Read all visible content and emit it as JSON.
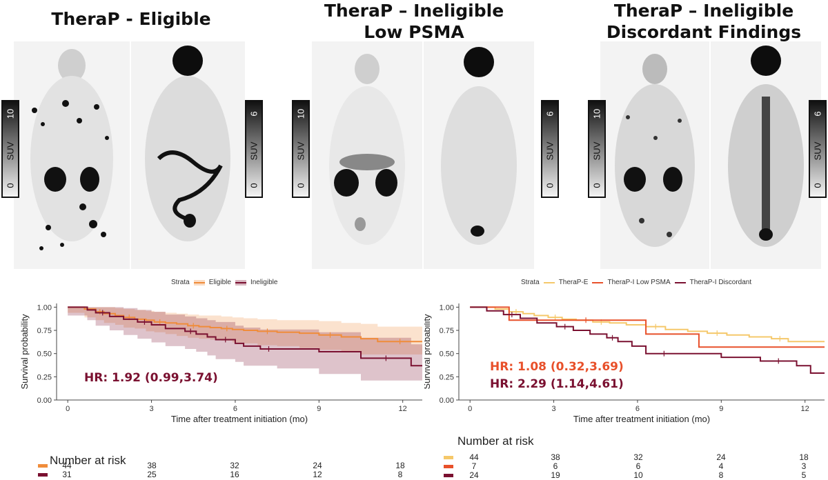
{
  "panels": [
    {
      "title_line1": "TheraP - Eligible",
      "title_line2": ""
    },
    {
      "title_line1": "TheraP – Ineligible",
      "title_line2": "Low PSMA"
    },
    {
      "title_line1": "TheraP – Ineligible",
      "title_line2": "Discordant Findings"
    }
  ],
  "scales": [
    {
      "label": "SUV",
      "low": "0",
      "high": "10"
    },
    {
      "label": "SUV",
      "low": "0",
      "high": "6"
    },
    {
      "label": "SUV",
      "low": "0",
      "high": "10"
    },
    {
      "label": "SUV",
      "low": "0",
      "high": "6"
    },
    {
      "label": "SUV",
      "low": "0",
      "high": "10"
    },
    {
      "label": "SUV",
      "low": "0",
      "high": "6"
    }
  ],
  "colors": {
    "eligible": "#f08c3a",
    "ineligible": "#7a1030",
    "therap_e": "#f5c86a",
    "low_psma": "#e8502a",
    "discordant": "#7a1030"
  },
  "chart_data": [
    {
      "type": "line",
      "legend_title": "Strata",
      "legend_position": "top",
      "xlabel": "Time after treatment initiation (mo)",
      "ylabel": "Survival probability",
      "xlim": [
        -0.4,
        12.7
      ],
      "ylim": [
        0,
        1.04
      ],
      "xticks": [
        "0",
        "3",
        "6",
        "9",
        "12"
      ],
      "yticks": [
        "0.00",
        "0.25",
        "0.50",
        "0.75",
        "1.00"
      ],
      "series": [
        {
          "name": "Eligible",
          "color": "#f08c3a",
          "x": [
            0,
            0.6,
            1.0,
            1.3,
            1.7,
            2.0,
            2.4,
            2.8,
            3.1,
            3.5,
            3.9,
            4.3,
            4.7,
            5.1,
            5.5,
            5.9,
            6.3,
            6.8,
            7.5,
            8.3,
            9.0,
            9.8,
            10.5,
            11.1,
            12.7
          ],
          "y": [
            1.0,
            0.98,
            0.95,
            0.93,
            0.91,
            0.89,
            0.87,
            0.86,
            0.84,
            0.83,
            0.82,
            0.8,
            0.79,
            0.78,
            0.77,
            0.76,
            0.75,
            0.74,
            0.73,
            0.72,
            0.7,
            0.68,
            0.66,
            0.63,
            0.63
          ],
          "ci_upper": [
            1.0,
            1.0,
            1.0,
            1.0,
            0.99,
            0.98,
            0.97,
            0.96,
            0.95,
            0.94,
            0.93,
            0.92,
            0.91,
            0.91,
            0.9,
            0.89,
            0.88,
            0.87,
            0.86,
            0.86,
            0.85,
            0.83,
            0.82,
            0.79,
            0.79
          ],
          "ci_lower": [
            1.0,
            0.94,
            0.89,
            0.86,
            0.83,
            0.81,
            0.78,
            0.77,
            0.74,
            0.73,
            0.71,
            0.69,
            0.67,
            0.66,
            0.65,
            0.64,
            0.62,
            0.61,
            0.59,
            0.58,
            0.56,
            0.54,
            0.52,
            0.49,
            0.49
          ]
        },
        {
          "name": "Ineligible",
          "color": "#7a1030",
          "x": [
            0,
            0.7,
            1.0,
            1.5,
            2.0,
            2.5,
            3.0,
            3.5,
            4.2,
            4.6,
            5.0,
            5.3,
            6.0,
            6.3,
            6.9,
            7.5,
            9.0,
            10.5,
            12.3,
            12.7
          ],
          "y": [
            1.0,
            0.97,
            0.94,
            0.9,
            0.87,
            0.84,
            0.81,
            0.77,
            0.74,
            0.71,
            0.68,
            0.65,
            0.61,
            0.58,
            0.55,
            0.55,
            0.52,
            0.45,
            0.37,
            0.37
          ],
          "ci_upper": [
            1.0,
            1.0,
            1.0,
            1.0,
            0.99,
            0.97,
            0.95,
            0.92,
            0.9,
            0.88,
            0.86,
            0.84,
            0.8,
            0.78,
            0.76,
            0.76,
            0.73,
            0.67,
            0.6,
            0.6
          ],
          "ci_lower": [
            1.0,
            0.91,
            0.86,
            0.8,
            0.75,
            0.7,
            0.66,
            0.62,
            0.58,
            0.55,
            0.52,
            0.48,
            0.44,
            0.41,
            0.37,
            0.37,
            0.34,
            0.28,
            0.21,
            0.21
          ]
        }
      ],
      "annotation": "HR: 1.92 (0.99,3.74)"
    },
    {
      "type": "line",
      "legend_title": "Strata",
      "legend_position": "top",
      "xlabel": "Time after treatment initiation (mo)",
      "ylabel": "Survival probability",
      "xlim": [
        -0.4,
        12.7
      ],
      "ylim": [
        0,
        1.04
      ],
      "xticks": [
        "0",
        "3",
        "6",
        "9",
        "12"
      ],
      "yticks": [
        "0.00",
        "0.25",
        "0.50",
        "0.75",
        "1.00"
      ],
      "series": [
        {
          "name": "TheraP-E",
          "color": "#f5c86a",
          "x": [
            0,
            0.9,
            1.4,
            1.9,
            2.3,
            2.8,
            3.3,
            3.8,
            4.4,
            5.0,
            5.6,
            6.3,
            7.0,
            7.8,
            8.5,
            9.2,
            10.0,
            10.8,
            11.4,
            12.7
          ],
          "y": [
            1.0,
            0.98,
            0.95,
            0.93,
            0.91,
            0.89,
            0.87,
            0.86,
            0.84,
            0.83,
            0.81,
            0.79,
            0.76,
            0.74,
            0.72,
            0.7,
            0.68,
            0.66,
            0.63,
            0.63
          ]
        },
        {
          "name": "TheraP-I Low PSMA",
          "color": "#e8502a",
          "x": [
            0,
            1.4,
            2.0,
            6.3,
            8.2,
            12.7
          ],
          "y": [
            1.0,
            0.86,
            0.86,
            0.71,
            0.57,
            0.57
          ]
        },
        {
          "name": "TheraP-I Discordant",
          "color": "#7a1030",
          "x": [
            0,
            0.6,
            1.2,
            1.8,
            2.4,
            3.1,
            3.7,
            4.3,
            4.9,
            5.3,
            5.8,
            6.3,
            7.6,
            9.0,
            10.4,
            11.7,
            12.2,
            12.7
          ],
          "y": [
            1.0,
            0.96,
            0.92,
            0.88,
            0.83,
            0.79,
            0.75,
            0.71,
            0.67,
            0.63,
            0.58,
            0.5,
            0.5,
            0.46,
            0.42,
            0.37,
            0.29,
            0.29
          ]
        }
      ],
      "annotations": [
        "HR: 1.08 (0.32,3.69)",
        "HR: 2.29 (1.14,4.61)"
      ]
    }
  ],
  "risk_tables": [
    {
      "title": "Number at risk",
      "rows": [
        {
          "color": "#f08c3a",
          "values": [
            "44",
            "38",
            "32",
            "24",
            "18"
          ]
        },
        {
          "color": "#7a1030",
          "values": [
            "31",
            "25",
            "16",
            "12",
            "8"
          ]
        }
      ]
    },
    {
      "title": "Number at risk",
      "rows": [
        {
          "color": "#f5c86a",
          "values": [
            "44",
            "38",
            "32",
            "24",
            "18"
          ]
        },
        {
          "color": "#e8502a",
          "values": [
            "7",
            "6",
            "6",
            "4",
            "3"
          ]
        },
        {
          "color": "#7a1030",
          "values": [
            "24",
            "19",
            "10",
            "8",
            "5"
          ]
        }
      ]
    }
  ]
}
